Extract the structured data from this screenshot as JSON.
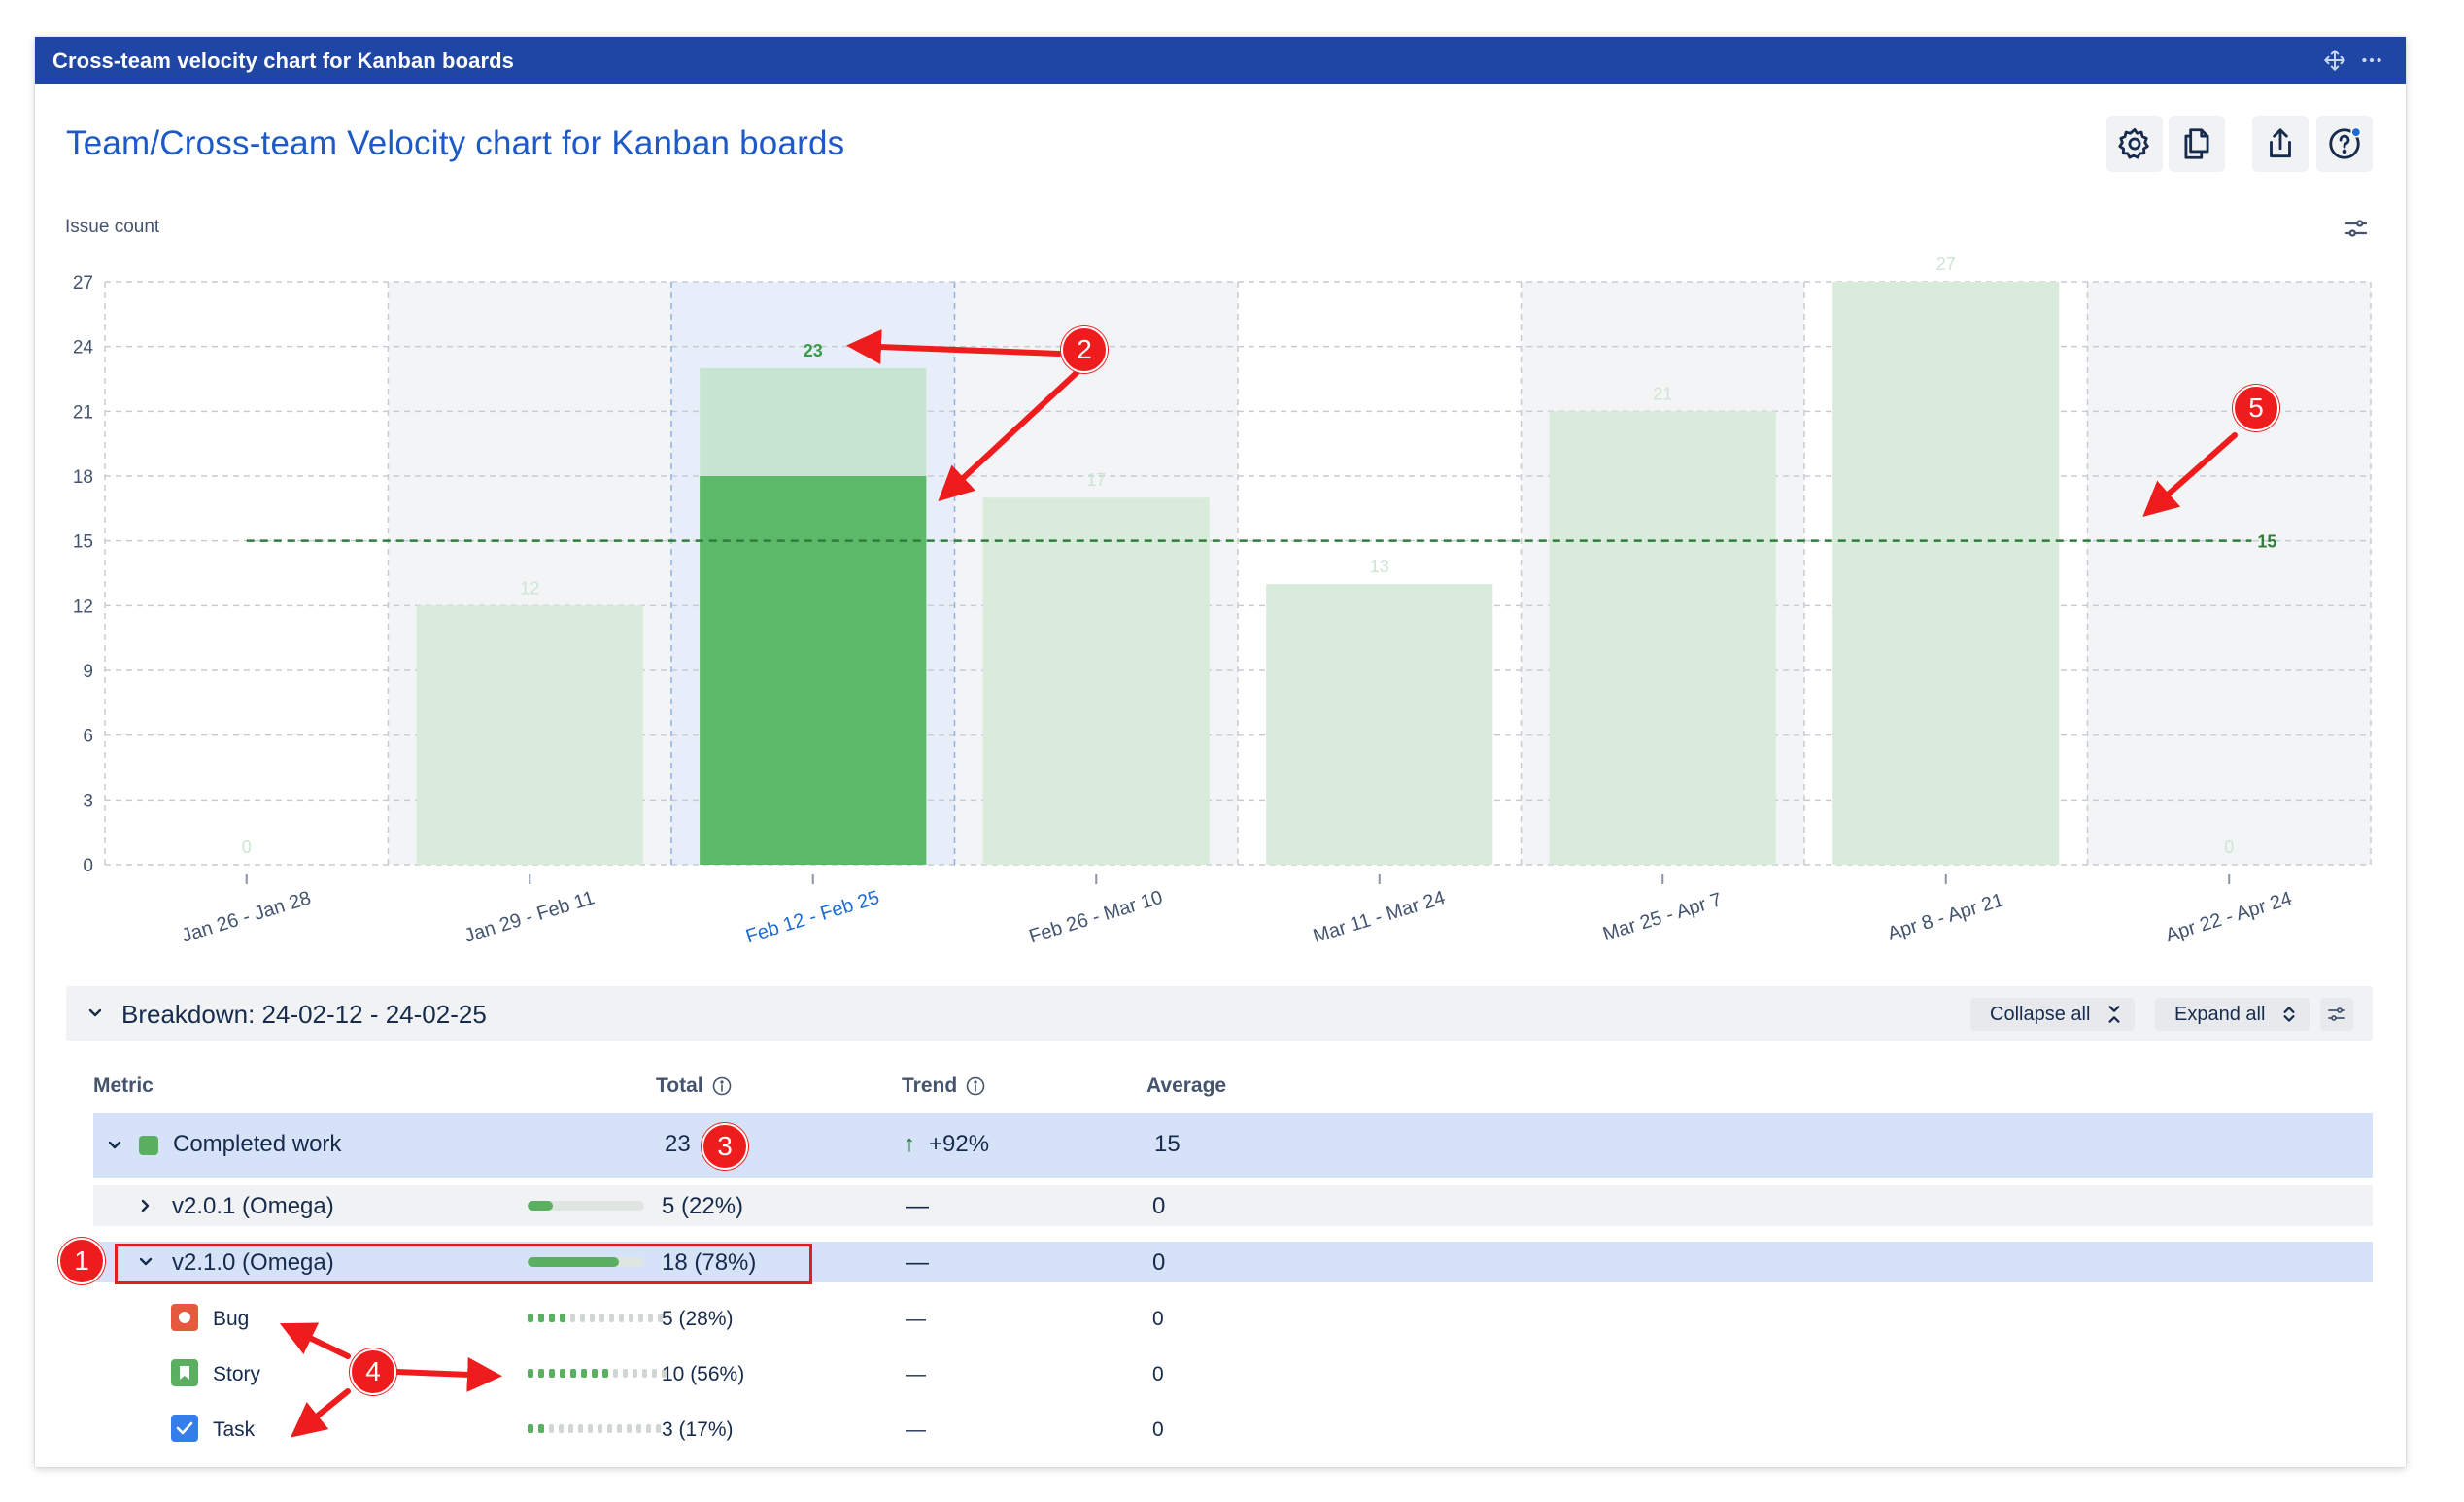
{
  "gadget": {
    "title": "Cross-team velocity chart for Kanban boards",
    "move_icon": "move-icon",
    "more_icon": "more-icon"
  },
  "header": {
    "title": "Team/Cross-team Velocity chart for Kanban boards",
    "toolbar": [
      {
        "name": "settings-icon"
      },
      {
        "name": "copy-icon"
      },
      {
        "name": "share-icon"
      },
      {
        "name": "help-icon"
      }
    ]
  },
  "chart_data": {
    "type": "bar",
    "ylabel": "Issue count",
    "ylim": [
      0,
      27
    ],
    "yticks": [
      0,
      3,
      6,
      9,
      12,
      15,
      18,
      21,
      24,
      27
    ],
    "categories": [
      "Jan 26 - Jan 28",
      "Jan 29 - Feb 11",
      "Feb 12 - Feb 25",
      "Feb 26 - Mar 10",
      "Mar 11 - Mar 24",
      "Mar 25 - Apr 7",
      "Apr 8 - Apr 21",
      "Apr 22 - Apr 24"
    ],
    "values": [
      0,
      12,
      23,
      17,
      13,
      21,
      27,
      0
    ],
    "value_labels": [
      "0",
      "12",
      "23",
      "17",
      "13",
      "21",
      "27",
      "0"
    ],
    "selected_index": 2,
    "selected_highlight_value": 18,
    "average": 15,
    "average_label": "15",
    "grid": true,
    "colors": {
      "bar": "#d9ecdb",
      "selected": "#5db96a",
      "selected_top": "#c8e4d3",
      "average_line": "#2f7d3a"
    }
  },
  "breakdown": {
    "title": "Breakdown: 24-02-12 - 24-02-25",
    "collapse_label": "Collapse all",
    "expand_label": "Expand all",
    "columns": {
      "metric": "Metric",
      "total": "Total",
      "trend": "Trend",
      "average": "Average"
    },
    "completed": {
      "label": "Completed work",
      "total": "23",
      "trend": "+92%",
      "average": "15",
      "color": "#5aaf60"
    },
    "rows": [
      {
        "label": "v2.0.1 (Omega)",
        "total": "5 (22%)",
        "trend": "—",
        "average": "0",
        "fraction": 0.22
      },
      {
        "label": "v2.1.0 (Omega)",
        "total": "18 (78%)",
        "trend": "—",
        "average": "0",
        "fraction": 0.78
      }
    ],
    "issue_types": [
      {
        "label": "Bug",
        "total": "5 (28%)",
        "trend": "—",
        "average": "0",
        "fraction": 0.28,
        "icon": "bug-icon",
        "color": "#e5593c"
      },
      {
        "label": "Story",
        "total": "10 (56%)",
        "trend": "—",
        "average": "0",
        "fraction": 0.56,
        "icon": "story-icon",
        "color": "#5aaf60"
      },
      {
        "label": "Task",
        "total": "3 (17%)",
        "trend": "—",
        "average": "0",
        "fraction": 0.17,
        "icon": "task-icon",
        "color": "#357de8"
      }
    ]
  },
  "annotations": [
    "1",
    "2",
    "3",
    "4",
    "5"
  ]
}
